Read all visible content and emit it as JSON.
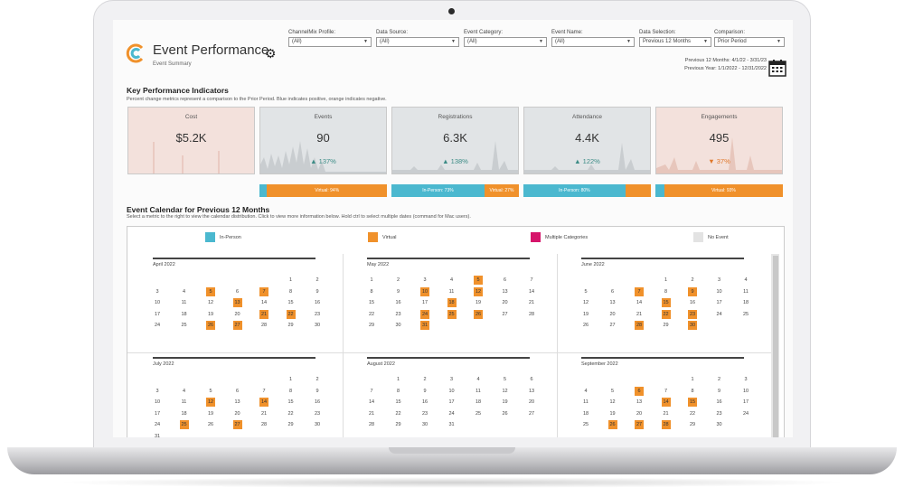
{
  "header": {
    "title": "Event Performance",
    "subtitle": "Event Summary",
    "filters": [
      {
        "label": "ChannelMix Profile:",
        "value": "(All)"
      },
      {
        "label": "Data Source:",
        "value": "(All)"
      },
      {
        "label": "Event Category:",
        "value": "(All)"
      },
      {
        "label": "Event Name:",
        "value": "(All)"
      },
      {
        "label": "Data Selection:",
        "value": "Previous 12 Months"
      },
      {
        "label": "Comparison:",
        "value": "Prior Period"
      }
    ],
    "previous_12_months": "Previous 12 Months: 4/1/22 - 3/31/23",
    "previous_year": "Previous Year: 1/1/2022 - 12/31/2022"
  },
  "kpi": {
    "heading": "Key Performance Indicators",
    "description": "Percent change metrics represent a comparison to the Prior Period. Blue indicates positive, orange indicates negative.",
    "cards": [
      {
        "label": "Cost",
        "value": "$5.2K",
        "change": ""
      },
      {
        "label": "Events",
        "value": "90",
        "change": "▲ 137%"
      },
      {
        "label": "Registrations",
        "value": "6.3K",
        "change": "▲ 138%"
      },
      {
        "label": "Attendance",
        "value": "4.4K",
        "change": "▲ 122%"
      },
      {
        "label": "Engagements",
        "value": "495",
        "change": "▼ 37%"
      }
    ],
    "split_bars": [
      {
        "card": "Events",
        "in_person_pct": 6,
        "virtual_pct": 94,
        "in_person_label": "",
        "virtual_label": "Virtual: 94%"
      },
      {
        "card": "Registrations",
        "in_person_pct": 73,
        "virtual_pct": 27,
        "in_person_label": "In-Person: 73%",
        "virtual_label": "Virtual: 27%"
      },
      {
        "card": "Attendance",
        "in_person_pct": 80,
        "virtual_pct": 20,
        "in_person_label": "In-Person: 80%",
        "virtual_label": ""
      },
      {
        "card": "Engagements",
        "in_person_pct": 7,
        "virtual_pct": 93,
        "in_person_label": "",
        "virtual_label": "Virtual: 93%"
      }
    ]
  },
  "calendar": {
    "heading": "Event Calendar for Previous 12 Months",
    "description": "Select a metric to the right to view the calendar distribution. Click to view more information below. Hold ctrl to select multiple dates (command for Mac users).",
    "legend": [
      {
        "label": "In-Person",
        "color": "#4bb8cf"
      },
      {
        "label": "Virtual",
        "color": "#f0912b"
      },
      {
        "label": "Multiple Categories",
        "color": "#d6156b"
      },
      {
        "label": "No Event",
        "color": "#e3e3e3"
      }
    ],
    "months": [
      {
        "name": "April 2022",
        "start_col": 5,
        "days": 30,
        "events": [
          5,
          7,
          13,
          21,
          22,
          26,
          27
        ]
      },
      {
        "name": "May 2022",
        "start_col": 0,
        "days": 31,
        "events": [
          5,
          10,
          12,
          18,
          24,
          25,
          26,
          31
        ]
      },
      {
        "name": "June 2022",
        "start_col": 3,
        "days": 30,
        "events": [
          7,
          9,
          15,
          22,
          23,
          28,
          30
        ]
      },
      {
        "name": "July 2022",
        "start_col": 5,
        "days": 31,
        "events": [
          12,
          14,
          25,
          27
        ]
      },
      {
        "name": "August 2022",
        "start_col": 1,
        "days": 31,
        "events": []
      },
      {
        "name": "September 2022",
        "start_col": 4,
        "days": 30,
        "events": [
          6,
          14,
          15,
          26,
          27,
          28
        ]
      }
    ],
    "colors": {
      "virtual": "#f0912b",
      "in_person": "#4bb8cf"
    }
  }
}
